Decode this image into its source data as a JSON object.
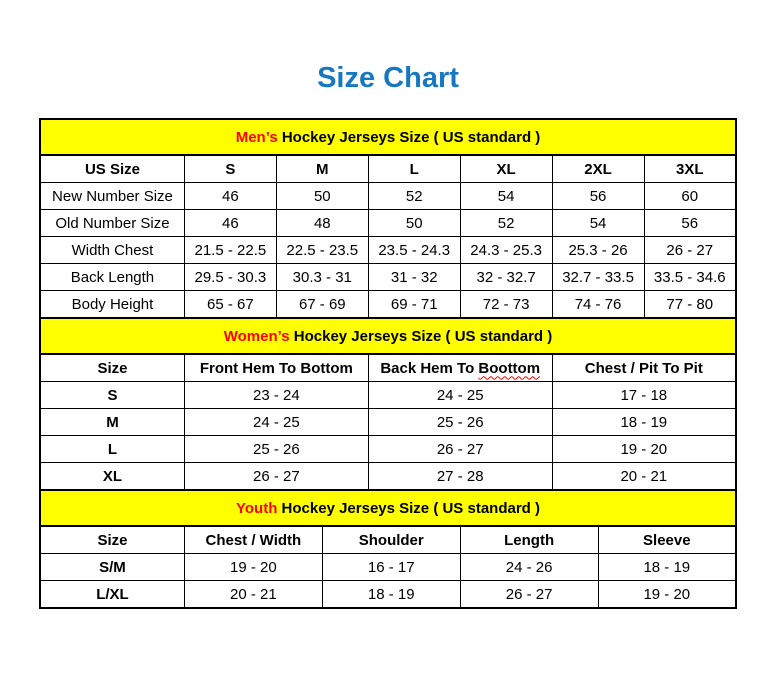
{
  "page": {
    "title": "Size Chart"
  },
  "colors": {
    "title_blue": "#1778C2",
    "section_header_bg": "#FFFF00",
    "accent_red": "#FF0000",
    "border": "#000000",
    "background": "#FFFFFF"
  },
  "sections": [
    {
      "id": "mens",
      "title_highlight": "Men’s",
      "title_rest": " Hockey Jerseys Size ( US standard )",
      "bold_row_labels": false,
      "columns": [
        "US Size",
        "S",
        "M",
        "L",
        "XL",
        "2XL",
        "3XL"
      ],
      "rows": [
        {
          "label": "New Number Size",
          "values": [
            "46",
            "50",
            "52",
            "54",
            "56",
            "60"
          ]
        },
        {
          "label": "Old Number Size",
          "values": [
            "46",
            "48",
            "50",
            "52",
            "54",
            "56"
          ]
        },
        {
          "label": "Width Chest",
          "values": [
            "21.5 - 22.5",
            "22.5 - 23.5",
            "23.5 - 24.3",
            "24.3 - 25.3",
            "25.3 - 26",
            "26 - 27"
          ]
        },
        {
          "label": "Back Length",
          "values": [
            "29.5 - 30.3",
            "30.3 - 31",
            "31 - 32",
            "32 - 32.7",
            "32.7 - 33.5",
            "33.5 - 34.6"
          ]
        },
        {
          "label": "Body Height",
          "values": [
            "65 - 67",
            "67 - 69",
            "69 - 71",
            "72 - 73",
            "74 - 76",
            "77 - 80"
          ]
        }
      ]
    },
    {
      "id": "womens",
      "title_highlight": "Women’s",
      "title_rest": " Hockey Jerseys Size ( US standard )",
      "bold_row_labels": true,
      "columns": [
        "Size",
        "Front Hem To Bottom",
        "Back Hem To Boottom",
        "Chest / Pit To Pit"
      ],
      "spellcheck": {
        "col_index": 2,
        "prefix": "Back Hem To ",
        "word": "Boottom"
      },
      "rows": [
        {
          "label": "S",
          "values": [
            "23 - 24",
            "24 - 25",
            "17 - 18"
          ]
        },
        {
          "label": "M",
          "values": [
            "24 - 25",
            "25 - 26",
            "18 - 19"
          ]
        },
        {
          "label": "L",
          "values": [
            "25 - 26",
            "26 - 27",
            "19 - 20"
          ]
        },
        {
          "label": "XL",
          "values": [
            "26 - 27",
            "27 - 28",
            "20 - 21"
          ]
        }
      ]
    },
    {
      "id": "youth",
      "title_highlight": "Youth",
      "title_rest": " Hockey Jerseys Size ( US standard )",
      "bold_row_labels": true,
      "columns": [
        "Size",
        "Chest / Width",
        "Shoulder",
        "Length",
        "Sleeve"
      ],
      "rows": [
        {
          "label": "S/M",
          "values": [
            "19 - 20",
            "16 - 17",
            "24 - 26",
            "18 - 19"
          ]
        },
        {
          "label": "L/XL",
          "values": [
            "20 - 21",
            "18 - 19",
            "26 - 27",
            "19 - 20"
          ]
        }
      ]
    }
  ]
}
